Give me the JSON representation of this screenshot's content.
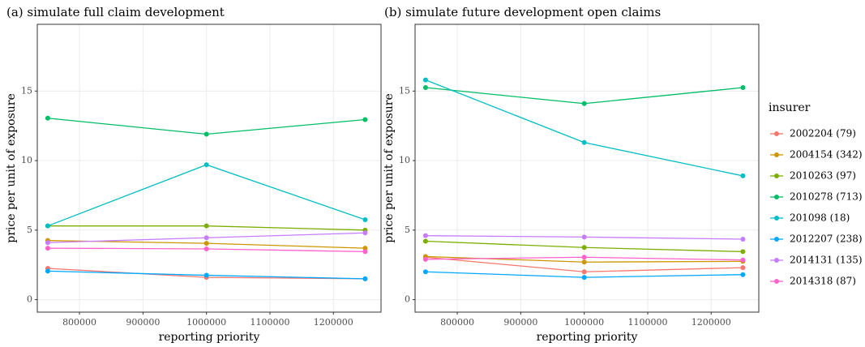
{
  "chart_data": [
    {
      "type": "line",
      "title": "(a) simulate full claim development",
      "xlabel": "reporting priority",
      "ylabel": "price per unit of exposure",
      "legend_title": "insurer",
      "legend": "right",
      "grid": true,
      "x": [
        750000,
        1000000,
        1250000
      ],
      "xlim": [
        733500,
        1275000
      ],
      "ylim": [
        -0.9,
        19.8
      ],
      "xticks": [
        800000,
        900000,
        1000000,
        1100000,
        1200000
      ],
      "yticks": [
        0,
        5,
        10,
        15
      ],
      "series": [
        {
          "name": "2002204 (79)",
          "color": "#F8766D",
          "values": [
            2.25,
            1.6,
            1.5
          ]
        },
        {
          "name": "2004154 (342)",
          "color": "#CD9600",
          "values": [
            4.25,
            4.05,
            3.7
          ]
        },
        {
          "name": "2010263 (97)",
          "color": "#7CAE00",
          "values": [
            5.3,
            5.3,
            5.0
          ]
        },
        {
          "name": "2010278 (713)",
          "color": "#00BE67",
          "values": [
            13.05,
            11.9,
            12.95
          ]
        },
        {
          "name": "201098 (18)",
          "color": "#00BFC4",
          "values": [
            5.3,
            9.7,
            5.75
          ]
        },
        {
          "name": "2012207 (238)",
          "color": "#00A9FF",
          "values": [
            2.05,
            1.75,
            1.5
          ]
        },
        {
          "name": "2014131 (135)",
          "color": "#C77CFF",
          "values": [
            4.1,
            4.45,
            4.8
          ]
        },
        {
          "name": "2014318 (87)",
          "color": "#FF61CC",
          "values": [
            3.7,
            3.65,
            3.45
          ]
        }
      ]
    },
    {
      "type": "line",
      "title": "(b) simulate future development open claims",
      "xlabel": "reporting priority",
      "ylabel": "price per unit of exposure",
      "grid": true,
      "x": [
        750000,
        1000000,
        1250000
      ],
      "xlim": [
        733500,
        1275000
      ],
      "ylim": [
        -0.9,
        19.8
      ],
      "xticks": [
        800000,
        900000,
        1000000,
        1100000,
        1200000
      ],
      "yticks": [
        0,
        5,
        10,
        15
      ],
      "series": [
        {
          "name": "2002204 (79)",
          "color": "#F8766D",
          "values": [
            3.05,
            2.0,
            2.3
          ]
        },
        {
          "name": "2004154 (342)",
          "color": "#CD9600",
          "values": [
            3.1,
            2.7,
            2.75
          ]
        },
        {
          "name": "2010263 (97)",
          "color": "#7CAE00",
          "values": [
            4.2,
            3.75,
            3.45
          ]
        },
        {
          "name": "2010278 (713)",
          "color": "#00BE67",
          "values": [
            15.25,
            14.1,
            15.25
          ]
        },
        {
          "name": "201098 (18)",
          "color": "#00BFC4",
          "values": [
            15.8,
            11.3,
            8.9
          ]
        },
        {
          "name": "2012207 (238)",
          "color": "#00A9FF",
          "values": [
            2.0,
            1.6,
            1.8
          ]
        },
        {
          "name": "2014131 (135)",
          "color": "#C77CFF",
          "values": [
            4.6,
            4.5,
            4.35
          ]
        },
        {
          "name": "2014318 (87)",
          "color": "#FF61CC",
          "values": [
            2.9,
            3.05,
            2.85
          ]
        }
      ]
    }
  ]
}
